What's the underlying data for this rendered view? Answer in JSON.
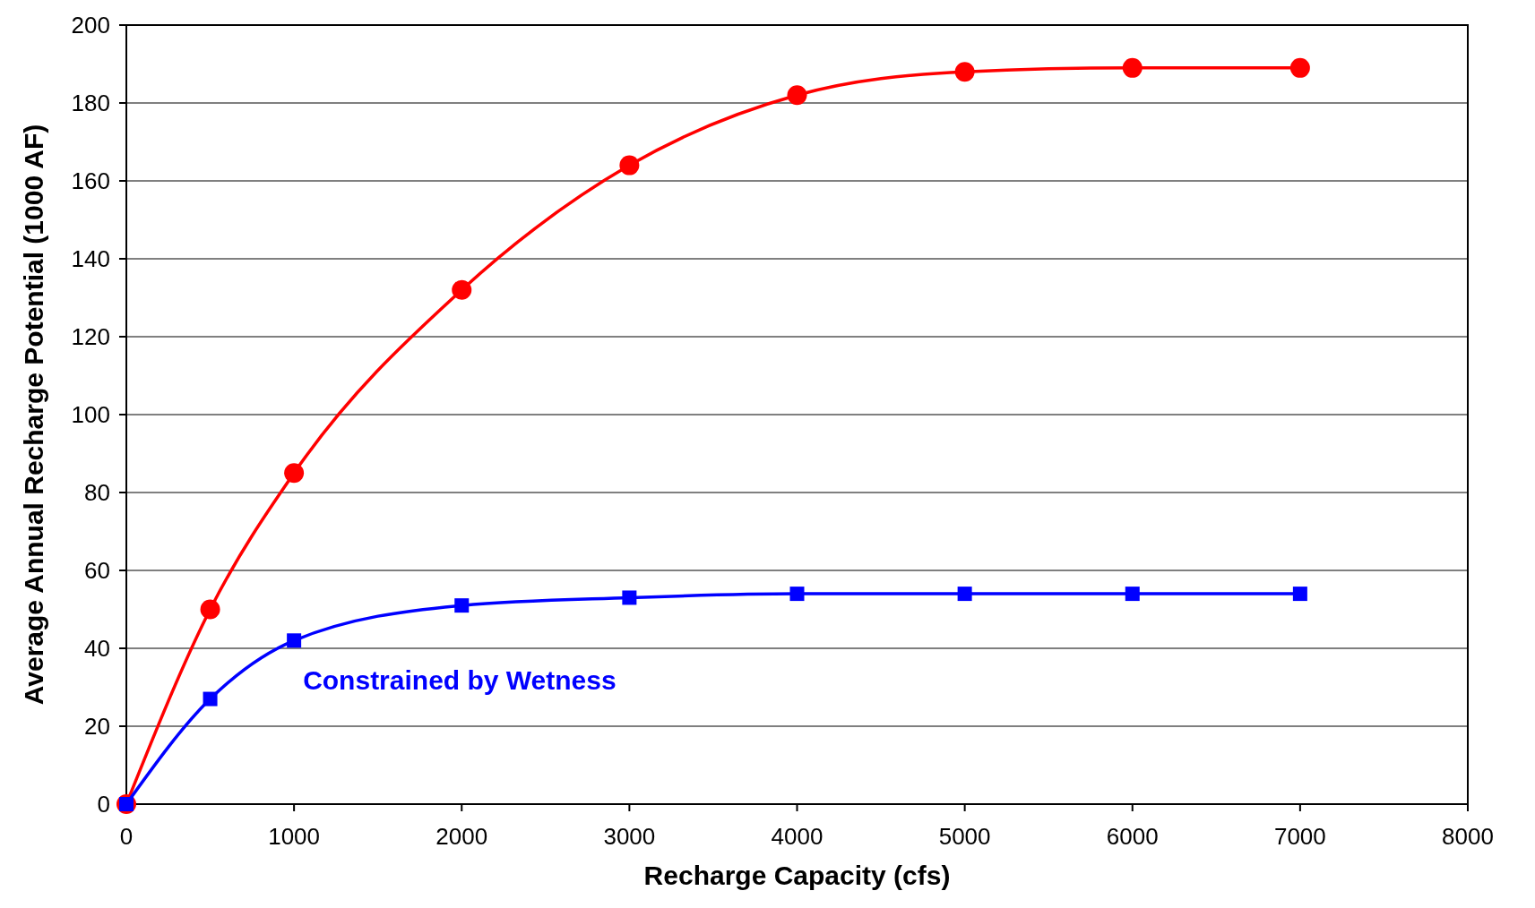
{
  "chart_data": {
    "type": "line",
    "xlabel": "Recharge Capacity (cfs)",
    "ylabel": "Average Annual Recharge Potential (1000 AF)",
    "x": [
      0,
      500,
      1000,
      2000,
      3000,
      4000,
      5000,
      6000,
      7000
    ],
    "series": [
      {
        "color": "#ff0000",
        "marker": "circle",
        "values": [
          0,
          50,
          85,
          132,
          164,
          182,
          188,
          189,
          189
        ]
      },
      {
        "name": "Constrained by Wetness",
        "color": "#0000ff",
        "marker": "square",
        "values": [
          0,
          27,
          42,
          51,
          53,
          54,
          54,
          54,
          54
        ]
      }
    ],
    "xlim": [
      0,
      8000
    ],
    "xticks": [
      0,
      1000,
      2000,
      3000,
      4000,
      5000,
      6000,
      7000,
      8000
    ],
    "ylim": [
      0,
      200
    ],
    "yticks": [
      0,
      20,
      40,
      60,
      80,
      100,
      120,
      140,
      160,
      180,
      200
    ],
    "grid": "y",
    "line_style": "solid"
  }
}
